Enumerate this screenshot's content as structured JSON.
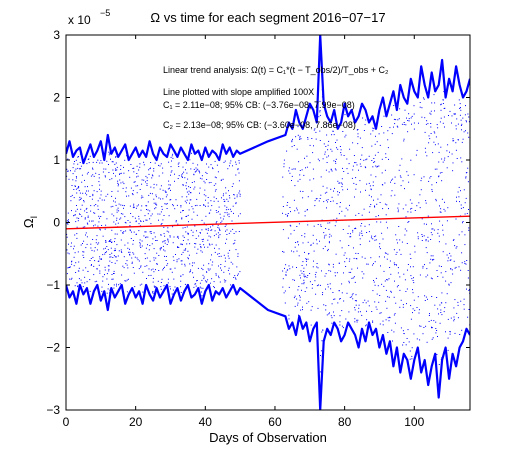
{
  "page": {
    "title": "Ω vs time for each segment 2016−07−17"
  },
  "chart_data": {
    "type": "scatter",
    "title": "Ω vs time for each segment 2016−07−17",
    "xlabel": "Days of Observation",
    "ylabel": "Ω",
    "ylabel_subscript": "I",
    "y_exponent_base": "x 10",
    "y_exponent_power": "−5",
    "xlim": [
      0,
      116
    ],
    "ylim": [
      -3,
      3
    ],
    "y_scale_multiplier": 1e-05,
    "grid": false,
    "box": true,
    "x_ticks": [
      0,
      20,
      40,
      60,
      80,
      100
    ],
    "x_tick_labels": [
      "0",
      "20",
      "40",
      "60",
      "80",
      "100"
    ],
    "y_ticks": [
      -3,
      -2,
      -1,
      0,
      1,
      2,
      3
    ],
    "y_tick_labels": [
      "−3",
      "−2",
      "−1",
      "0",
      "1",
      "2",
      "3"
    ],
    "colors": {
      "points": "#0000ff",
      "envelope": "#0000ff",
      "trend": "#ff0000",
      "axes": "#000000"
    },
    "gap": [
      50,
      62
    ],
    "annotations": [
      "Linear trend analysis: Ω(t) = C₁*(t − T_obs/2)/T_obs + C₂",
      "Line plotted with slope amplified 100X",
      "C₁ = 2.11e−08; 95% CB: (−3.76e−08, 7.99e−08)",
      "C₂ = 2.13e−08; 95% CB: (−3.60e−08, 7.86e−08)"
    ],
    "series": [
      {
        "type": "line",
        "role": "upper-envelope",
        "x": [
          0,
          1,
          2,
          3,
          4,
          5,
          6,
          7,
          8,
          9,
          10,
          11,
          12,
          13,
          14,
          15,
          16,
          17,
          18,
          19,
          20,
          21,
          22,
          23,
          24,
          25,
          26,
          27,
          28,
          29,
          30,
          31,
          32,
          33,
          34,
          35,
          36,
          37,
          38,
          39,
          40,
          41,
          42,
          43,
          44,
          45,
          46,
          47,
          48,
          49,
          50,
          58,
          63,
          64,
          65,
          66,
          67,
          68,
          69,
          70,
          71,
          72,
          73,
          74,
          75,
          76,
          77,
          78,
          79,
          80,
          81,
          82,
          83,
          84,
          85,
          86,
          87,
          88,
          89,
          90,
          91,
          92,
          93,
          94,
          95,
          96,
          97,
          98,
          99,
          100,
          101,
          102,
          103,
          104,
          105,
          106,
          107,
          108,
          109,
          110,
          111,
          112,
          113,
          114,
          115,
          116
        ],
        "y": [
          1.1,
          1.3,
          1.05,
          1.15,
          1.2,
          0.95,
          1.1,
          1.25,
          1.05,
          1.15,
          1.3,
          1.0,
          1.4,
          1.1,
          1.2,
          1.05,
          1.15,
          1.25,
          1.0,
          1.1,
          1.2,
          1.05,
          1.15,
          1.05,
          1.3,
          1.1,
          1.0,
          1.2,
          1.1,
          1.05,
          1.25,
          1.15,
          1.05,
          1.2,
          1.1,
          1.0,
          1.25,
          1.1,
          1.15,
          1.0,
          1.2,
          1.05,
          1.15,
          1.1,
          1.0,
          1.25,
          1.1,
          1.2,
          1.05,
          1.15,
          1.1,
          1.3,
          1.4,
          1.6,
          1.5,
          1.8,
          1.6,
          1.5,
          1.7,
          1.9,
          1.8,
          1.6,
          3.0,
          1.9,
          1.7,
          1.6,
          1.8,
          1.5,
          1.6,
          1.9,
          1.7,
          1.8,
          1.6,
          1.7,
          1.9,
          1.8,
          1.6,
          1.7,
          1.5,
          1.8,
          2.0,
          1.7,
          1.9,
          2.1,
          1.8,
          2.2,
          2.0,
          1.9,
          2.3,
          2.1,
          2.0,
          2.5,
          2.2,
          2.0,
          2.4,
          2.1,
          2.2,
          2.6,
          2.0,
          2.3,
          2.1,
          2.5,
          2.2,
          2.0,
          2.1,
          2.3
        ]
      },
      {
        "type": "line",
        "role": "lower-envelope",
        "x": [
          0,
          1,
          2,
          3,
          4,
          5,
          6,
          7,
          8,
          9,
          10,
          11,
          12,
          13,
          14,
          15,
          16,
          17,
          18,
          19,
          20,
          21,
          22,
          23,
          24,
          25,
          26,
          27,
          28,
          29,
          30,
          31,
          32,
          33,
          34,
          35,
          36,
          37,
          38,
          39,
          40,
          41,
          42,
          43,
          44,
          45,
          46,
          47,
          48,
          49,
          50,
          58,
          63,
          64,
          65,
          66,
          67,
          68,
          69,
          70,
          71,
          72,
          73,
          74,
          75,
          76,
          77,
          78,
          79,
          80,
          81,
          82,
          83,
          84,
          85,
          86,
          87,
          88,
          89,
          90,
          91,
          92,
          93,
          94,
          95,
          96,
          97,
          98,
          99,
          100,
          101,
          102,
          103,
          104,
          105,
          106,
          107,
          108,
          109,
          110,
          111,
          112,
          113,
          114,
          115,
          116
        ],
        "y": [
          -1.0,
          -1.2,
          -1.1,
          -1.3,
          -1.0,
          -1.15,
          -1.05,
          -1.3,
          -1.1,
          -1.0,
          -1.25,
          -1.1,
          -1.4,
          -1.05,
          -1.2,
          -1.1,
          -1.0,
          -1.3,
          -1.15,
          -1.05,
          -1.2,
          -1.1,
          -1.3,
          -1.0,
          -1.15,
          -1.25,
          -1.05,
          -1.2,
          -1.1,
          -1.0,
          -1.3,
          -1.15,
          -1.05,
          -1.25,
          -1.1,
          -1.0,
          -1.2,
          -1.15,
          -1.05,
          -1.3,
          -1.1,
          -1.0,
          -1.25,
          -1.1,
          -1.15,
          -1.05,
          -1.2,
          -1.1,
          -1.0,
          -1.15,
          -1.05,
          -1.4,
          -1.5,
          -1.7,
          -1.6,
          -1.8,
          -1.5,
          -1.7,
          -1.6,
          -1.9,
          -1.7,
          -1.6,
          -3.0,
          -1.9,
          -1.7,
          -1.8,
          -1.6,
          -1.7,
          -1.9,
          -1.8,
          -1.6,
          -1.7,
          -1.8,
          -2.0,
          -1.7,
          -1.9,
          -1.6,
          -1.8,
          -1.7,
          -2.0,
          -1.8,
          -2.1,
          -1.9,
          -2.3,
          -2.0,
          -2.4,
          -2.1,
          -2.2,
          -2.5,
          -2.2,
          -2.0,
          -2.4,
          -2.2,
          -2.6,
          -2.3,
          -2.1,
          -2.8,
          -2.2,
          -2.0,
          -2.5,
          -2.1,
          -2.3,
          -2.0,
          -1.9,
          -1.7,
          -1.8
        ]
      },
      {
        "type": "line",
        "role": "linear-trend",
        "x": [
          0,
          116
        ],
        "y": [
          -0.1,
          0.1
        ]
      }
    ]
  }
}
